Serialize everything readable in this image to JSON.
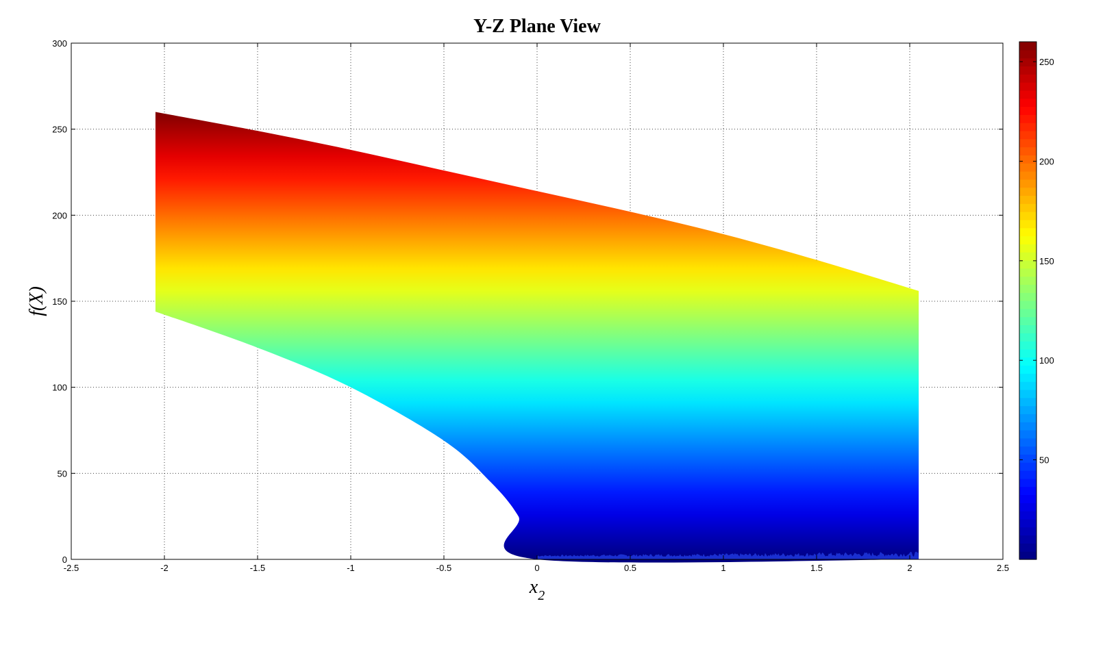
{
  "chart_data": {
    "type": "area",
    "title": "Y-Z Plane View",
    "xlabel": "x",
    "xlabel_subscript": "2",
    "ylabel": "f(X)",
    "xlim": [
      -2.5,
      2.5
    ],
    "ylim": [
      0,
      300
    ],
    "xticks": [
      -2.5,
      -2,
      -1.5,
      -1,
      -0.5,
      0,
      0.5,
      1,
      1.5,
      2,
      2.5
    ],
    "xtick_labels": [
      "-2.5",
      "-2",
      "-1.5",
      "-1",
      "-0.5",
      "0",
      "0.5",
      "1",
      "1.5",
      "2",
      "2.5"
    ],
    "yticks": [
      0,
      50,
      100,
      150,
      200,
      250,
      300
    ],
    "ytick_labels": [
      "0",
      "50",
      "100",
      "150",
      "200",
      "250",
      "300"
    ],
    "grid": true,
    "colormap": "jet",
    "color_by": "f(X)",
    "series": [
      {
        "upper_boundary": {
          "x": [
            -2.048,
            -1.5,
            -1.0,
            -0.5,
            0.0,
            0.5,
            1.0,
            1.5,
            2.048
          ],
          "y": [
            260,
            249,
            238,
            226,
            214,
            202,
            189,
            174,
            156
          ]
        },
        "lower_boundary": {
          "x": [
            -2.048,
            -1.5,
            -1.0,
            -0.5,
            -0.25,
            -0.1,
            0.0,
            2.048
          ],
          "y": [
            144,
            123,
            100,
            69,
            45,
            25,
            0,
            0
          ]
        }
      }
    ],
    "colorbar": {
      "clim": [
        0,
        260
      ],
      "ticks": [
        50,
        100,
        150,
        200,
        250
      ],
      "tick_labels": [
        "50",
        "100",
        "150",
        "200",
        "250"
      ],
      "placement": "right"
    }
  }
}
